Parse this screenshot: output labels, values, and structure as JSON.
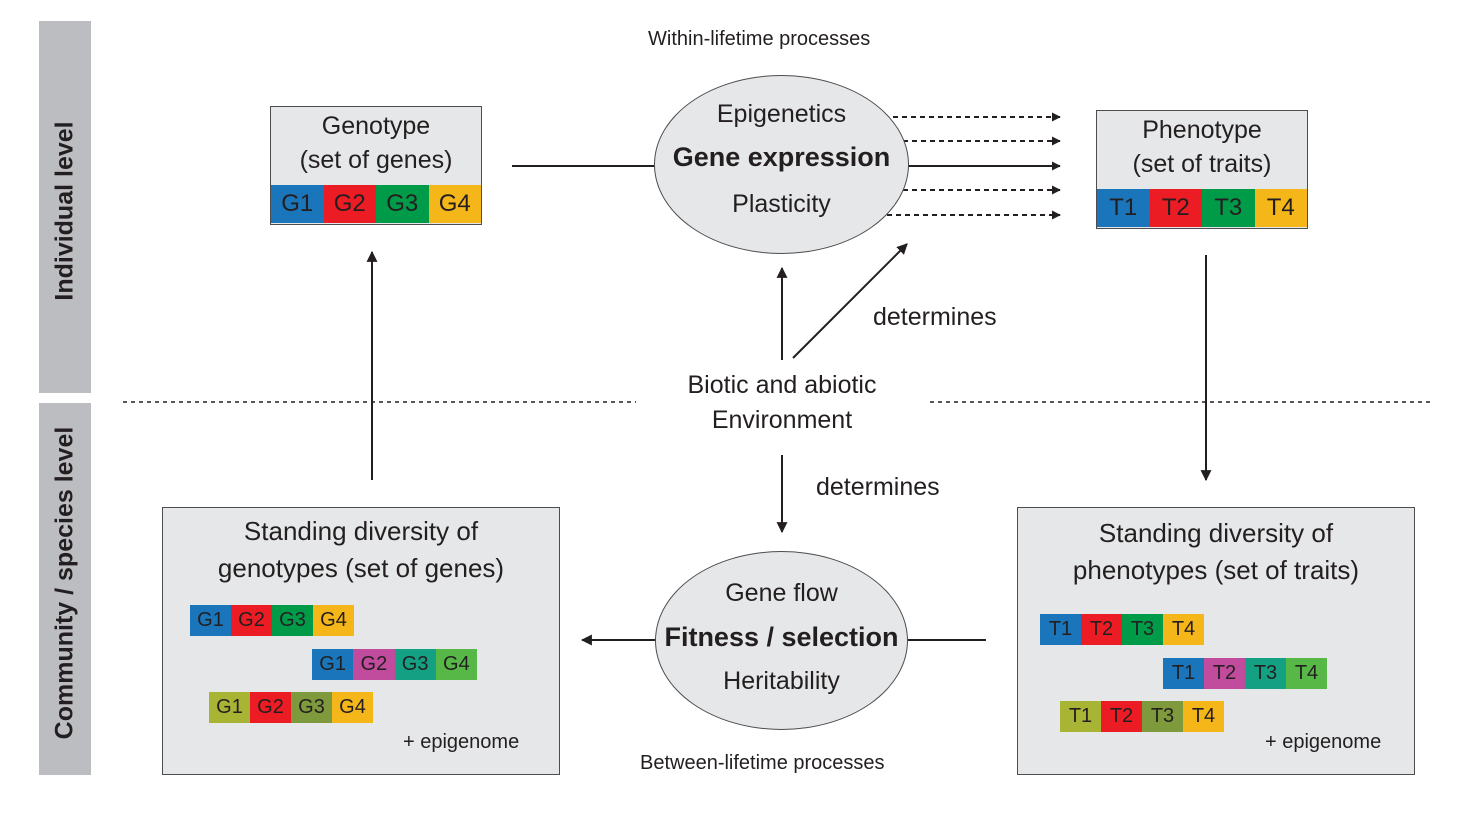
{
  "levels": {
    "individual": "Individual level",
    "community": "Community / species level"
  },
  "headings": {
    "within": "Within-lifetime processes",
    "between": "Between-lifetime processes"
  },
  "genotype": {
    "title_line1": "Genotype",
    "title_line2": "(set of genes)",
    "cells": [
      "G1",
      "G2",
      "G3",
      "G4"
    ]
  },
  "phenotype": {
    "title_line1": "Phenotype",
    "title_line2": "(set of traits)",
    "cells": [
      "T1",
      "T2",
      "T3",
      "T4"
    ]
  },
  "expression_oval": {
    "top": "Epigenetics",
    "middle": "Gene expression",
    "bottom": "Plasticity"
  },
  "selection_oval": {
    "top": "Gene flow",
    "middle": "Fitness / selection",
    "bottom": "Heritability"
  },
  "environment": {
    "line1": "Biotic and abiotic",
    "line2": "Environment",
    "determines_upper": "determines",
    "determines_lower": "determines"
  },
  "genotype_diversity": {
    "title_line1": "Standing diversity of",
    "title_line2": "genotypes (set of genes)",
    "rows": [
      [
        "G1",
        "G2",
        "G3",
        "G4"
      ],
      [
        "G1",
        "G2",
        "G3",
        "G4"
      ],
      [
        "G1",
        "G2",
        "G3",
        "G4"
      ]
    ],
    "note": "+ epigenome"
  },
  "phenotype_diversity": {
    "title_line1": "Standing diversity of",
    "title_line2": "phenotypes (set of traits)",
    "rows": [
      [
        "T1",
        "T2",
        "T3",
        "T4"
      ],
      [
        "T1",
        "T2",
        "T3",
        "T4"
      ],
      [
        "T1",
        "T2",
        "T3",
        "T4"
      ]
    ],
    "note": "+ epigenome"
  },
  "colors": {
    "sidebar": "#bcbdc0",
    "box_fill": "#e6e7e8",
    "blue": "#1b75bb",
    "red": "#ec1c24",
    "green": "#009b48",
    "yellow": "#f5b61a",
    "magenta": "#c14b9c",
    "teal": "#14a083",
    "light_green": "#58b847",
    "olive": "#a8b534",
    "dark_olive": "#7f9a3c"
  }
}
